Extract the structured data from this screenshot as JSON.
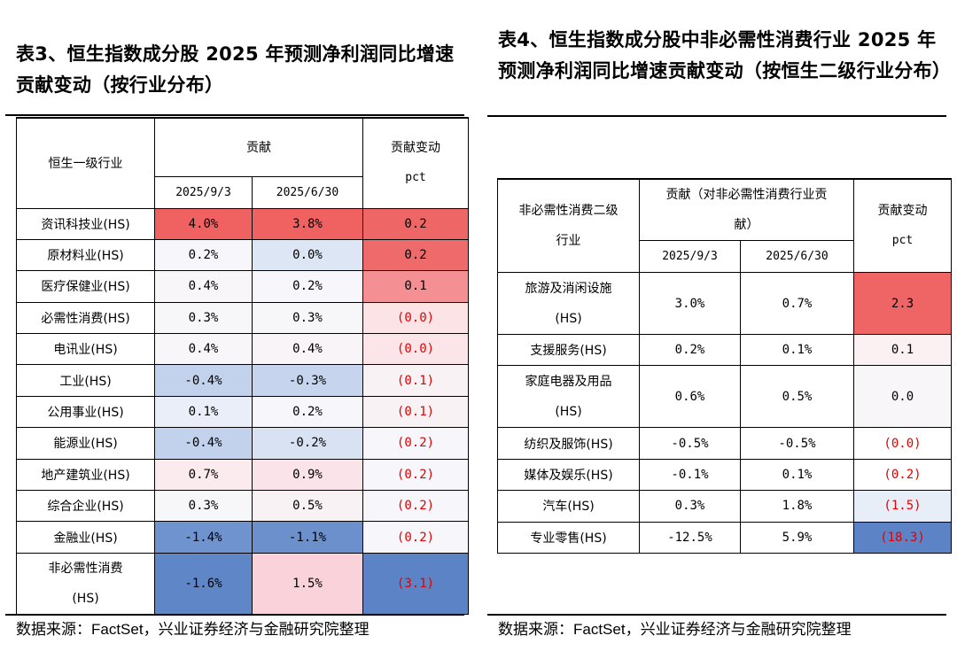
{
  "left": {
    "title": "表3、恒生指数成分股 2025 年预测净利润同比增速贡献变动（按行业分布）",
    "headers": {
      "industry": "恒生一级行业",
      "contrib": "贡献",
      "change": "贡献变动",
      "unit": "pct",
      "date1": "2025/9/3",
      "date2": "2025/6/30"
    },
    "rows": [
      {
        "name": "资讯科技业(HS)",
        "v1": "4.0%",
        "v2": "3.8%",
        "chg": "0.2",
        "c1": "#f06262",
        "c2": "#f06262",
        "cc": "#ef6666",
        "neg": false
      },
      {
        "name": "原材料业(HS)",
        "v1": "0.2%",
        "v2": "0.0%",
        "chg": "0.2",
        "c1": "#f6f6fb",
        "c2": "#dde6f5",
        "cc": "#ef6b6b",
        "neg": false
      },
      {
        "name": "医疗保健业(HS)",
        "v1": "0.4%",
        "v2": "0.2%",
        "chg": "0.1",
        "c1": "#f8f6f9",
        "c2": "#f6f6fb",
        "cc": "#f48f93",
        "neg": false
      },
      {
        "name": "必需性消费(HS)",
        "v1": "0.3%",
        "v2": "0.3%",
        "chg": "(0.0)",
        "c1": "#f7f7fa",
        "c2": "#f7f7fa",
        "cc": "#fbe3e6",
        "neg": true
      },
      {
        "name": "电讯业(HS)",
        "v1": "0.4%",
        "v2": "0.4%",
        "chg": "(0.0)",
        "c1": "#f8f6f9",
        "c2": "#f9f4f7",
        "cc": "#fbe5e8",
        "neg": true
      },
      {
        "name": "工业(HS)",
        "v1": "-0.4%",
        "v2": "-0.3%",
        "chg": "(0.1)",
        "c1": "#c2d2ec",
        "c2": "#c6d5ed",
        "cc": "#f9f2f5",
        "neg": true
      },
      {
        "name": "公用事业(HS)",
        "v1": "0.1%",
        "v2": "0.2%",
        "chg": "(0.1)",
        "c1": "#e9eef8",
        "c2": "#f6f6fb",
        "cc": "#f9f2f5",
        "neg": true
      },
      {
        "name": "能源业(HS)",
        "v1": "-0.4%",
        "v2": "-0.2%",
        "chg": "(0.2)",
        "c1": "#c2d2ec",
        "c2": "#d8e2f3",
        "cc": "#f6f6fb",
        "neg": true
      },
      {
        "name": "地产建筑业(HS)",
        "v1": "0.7%",
        "v2": "0.9%",
        "chg": "(0.2)",
        "c1": "#fbeaee",
        "c2": "#fbe4e9",
        "cc": "#f6f6fb",
        "neg": true
      },
      {
        "name": "综合企业(HS)",
        "v1": "0.3%",
        "v2": "0.5%",
        "chg": "(0.2)",
        "c1": "#f7f7fa",
        "c2": "#f9f2f5",
        "cc": "#f6f6fb",
        "neg": true
      },
      {
        "name": "金融业(HS)",
        "v1": "-1.4%",
        "v2": "-1.1%",
        "chg": "(0.2)",
        "c1": "#6f93ce",
        "c2": "#6b90cc",
        "cc": "#f6f6fb",
        "neg": true
      },
      {
        "name": "非必需性消费(HS)",
        "v1": "-1.6%",
        "v2": "1.5%",
        "chg": "(3.1)",
        "c1": "#5f86c7",
        "c2": "#f9d3d9",
        "cc": "#5b83c6",
        "neg": true,
        "tall": true
      }
    ],
    "source": "数据来源：FactSet，兴业证券经济与金融研究院整理"
  },
  "right": {
    "title": "表4、恒生指数成分股中非必需性消费行业 2025 年预测净利润同比增速贡献变动（按恒生二级行业分布）",
    "headers": {
      "industry": "非必需性消费二级行业",
      "contrib": "贡献（对非必需性消费行业贡献）",
      "change": "贡献变动",
      "unit": "pct",
      "date1": "2025/9/3",
      "date2": "2025/6/30"
    },
    "rows": [
      {
        "name": "旅游及消闲设施(HS)",
        "v1": "3.0%",
        "v2": "0.7%",
        "chg": "2.3",
        "cc": "#ef6565",
        "neg": false,
        "tall": true
      },
      {
        "name": "支援服务(HS)",
        "v1": "0.2%",
        "v2": "0.1%",
        "chg": "0.1",
        "cc": "#fbf1f3",
        "neg": false
      },
      {
        "name": "家庭电器及用品(HS)",
        "v1": "0.6%",
        "v2": "0.5%",
        "chg": "0.0",
        "cc": "#f8f6f9",
        "neg": false,
        "tall": true
      },
      {
        "name": "纺织及服饰(HS)",
        "v1": "-0.5%",
        "v2": "-0.5%",
        "chg": "(0.0)",
        "cc": "#ffffff",
        "neg": true
      },
      {
        "name": "媒体及娱乐(HS)",
        "v1": "-0.1%",
        "v2": "0.1%",
        "chg": "(0.2)",
        "cc": "#ffffff",
        "neg": true
      },
      {
        "name": "汽车(HS)",
        "v1": "0.3%",
        "v2": "1.8%",
        "chg": "(1.5)",
        "cc": "#e8eef8",
        "neg": true
      },
      {
        "name": "专业零售(HS)",
        "v1": "-12.5%",
        "v2": "5.9%",
        "chg": "(18.3)",
        "cc": "#5b83c6",
        "neg": true
      }
    ],
    "source": "数据来源：FactSet，兴业证券经济与金融研究院整理"
  }
}
